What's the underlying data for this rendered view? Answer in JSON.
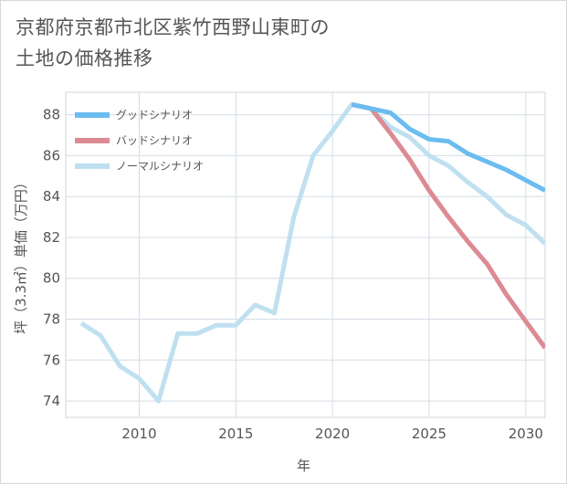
{
  "title": {
    "line1": "京都府京都市北区紫竹西野山東町の",
    "line2": "土地の価格推移"
  },
  "chart_data": {
    "type": "line",
    "xlabel": "年",
    "ylabel": "坪（3.3㎡）単価（万円）",
    "xlim": [
      2006.2,
      2031
    ],
    "ylim": [
      73.2,
      89.1
    ],
    "x_ticks": [
      2010,
      2015,
      2020,
      2025,
      2030
    ],
    "y_ticks": [
      74,
      76,
      78,
      80,
      82,
      84,
      86,
      88
    ],
    "grid": true,
    "legend_position": "top-left",
    "series": [
      {
        "name": "グッドシナリオ",
        "color": "#6bbcf0",
        "x": [
          2021,
          2022,
          2023,
          2024,
          2025,
          2026,
          2027,
          2028,
          2029,
          2030,
          2031
        ],
        "y": [
          88.5,
          88.3,
          88.1,
          87.3,
          86.8,
          86.7,
          86.1,
          85.7,
          85.3,
          84.8,
          84.3
        ]
      },
      {
        "name": "バッドシナリオ",
        "color": "#dc8a94",
        "x": [
          2021,
          2022,
          2023,
          2024,
          2025,
          2026,
          2027,
          2028,
          2029,
          2030,
          2031
        ],
        "y": [
          88.5,
          88.3,
          87.1,
          85.8,
          84.3,
          83.0,
          81.8,
          80.7,
          79.2,
          77.9,
          76.6
        ]
      },
      {
        "name": "ノーマルシナリオ",
        "color": "#bfe0f0",
        "x": [
          2007,
          2008,
          2009,
          2010,
          2011,
          2012,
          2013,
          2014,
          2015,
          2016,
          2017,
          2018,
          2019,
          2020,
          2021,
          2022,
          2023,
          2024,
          2025,
          2026,
          2027,
          2028,
          2029,
          2030,
          2031
        ],
        "y": [
          77.8,
          77.2,
          75.7,
          75.1,
          74.0,
          77.3,
          77.3,
          77.7,
          77.7,
          78.7,
          78.3,
          83.0,
          86.0,
          87.2,
          88.5,
          88.3,
          87.4,
          86.9,
          86.0,
          85.5,
          84.7,
          84.0,
          83.1,
          82.6,
          81.7
        ]
      }
    ]
  }
}
